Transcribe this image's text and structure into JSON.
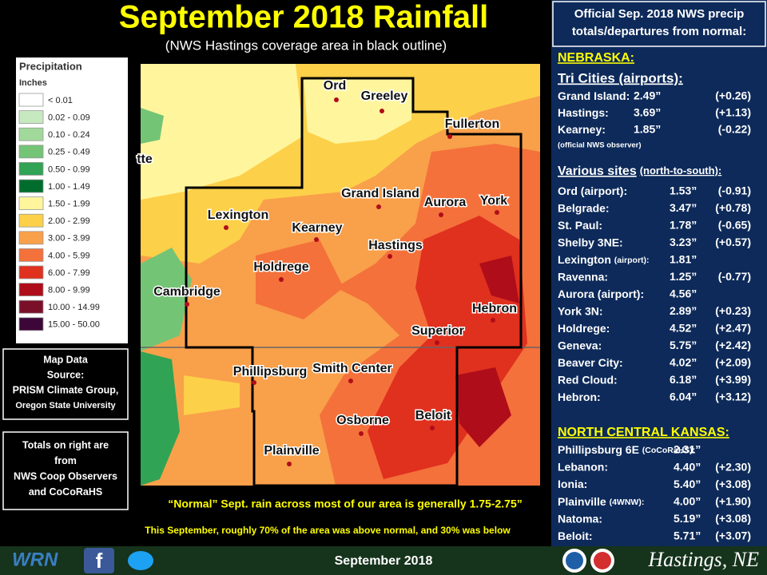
{
  "header": {
    "title": "September 2018 Rainfall",
    "subtitle": "(NWS Hastings coverage area in black outline)"
  },
  "legend": {
    "title": "Precipitation",
    "unit": "Inches",
    "items": [
      {
        "label": "< 0.01",
        "color": "#ffffff"
      },
      {
        "label": "0.02 - 0.09",
        "color": "#c7e9c0"
      },
      {
        "label": "0.10 - 0.24",
        "color": "#a1d99b"
      },
      {
        "label": "0.25 - 0.49",
        "color": "#74c476"
      },
      {
        "label": "0.50 - 0.99",
        "color": "#31a354"
      },
      {
        "label": "1.00 - 1.49",
        "color": "#006d2c"
      },
      {
        "label": "1.50 - 1.99",
        "color": "#fff59d"
      },
      {
        "label": "2.00 - 2.99",
        "color": "#fdd049"
      },
      {
        "label": "3.00 - 3.99",
        "color": "#f9a04a"
      },
      {
        "label": "4.00 - 5.99",
        "color": "#f4713b"
      },
      {
        "label": "6.00 - 7.99",
        "color": "#e0301e"
      },
      {
        "label": "8.00 - 9.99",
        "color": "#b00d1a"
      },
      {
        "label": "10.00 - 14.99",
        "color": "#7a0f2a"
      },
      {
        "label": "15.00 - 50.00",
        "color": "#3d0638"
      }
    ]
  },
  "map": {
    "places": [
      "Ord",
      "Greeley",
      "Fullerton",
      "tte",
      "Grand Island",
      "Aurora",
      "York",
      "Lexington",
      "Kearney",
      "Hastings",
      "Holdrege",
      "Cambridge",
      "Hebron",
      "Superior",
      "Phillipsburg",
      "Smith Center",
      "Osborne",
      "Beloit",
      "Plainville"
    ]
  },
  "source_box": {
    "lines": [
      "Map Data",
      "Source:",
      "PRISM Climate Group,",
      "Oregon State University"
    ]
  },
  "totals_box": {
    "lines": [
      "Totals on right are",
      "from",
      "NWS Coop Observers",
      "and CoCoRaHS"
    ]
  },
  "notes": {
    "normal": "“Normal” Sept.  rain across most of our area is generally 1.75-2.75”",
    "summary": "This September, roughly 70% of the area was above normal, and 30% was below"
  },
  "panel": {
    "header": [
      "Official Sep. 2018 NWS precip",
      "totals/departures from normal:"
    ],
    "nebraska": {
      "heading": "NEBRASKA:",
      "subheading": "Tri Cities (airports):",
      "tri_cities": [
        {
          "site": "Grand Island:",
          "total": "2.49”",
          "departure": "(+0.26)"
        },
        {
          "site": "Hastings:",
          "total": "3.69”",
          "departure": "(+1.13)"
        },
        {
          "site": "Kearney:",
          "total": "1.85”",
          "departure": "(-0.22)"
        }
      ],
      "observer_note": "(official NWS observer)",
      "various_heading": "Various  sites",
      "various_note": "(north-to-south):",
      "various": [
        {
          "site": "Ord (airport):",
          "total": "1.53”",
          "departure": "(-0.91)"
        },
        {
          "site": "Belgrade:",
          "total": "3.47”",
          "departure": "(+0.78)"
        },
        {
          "site": "St. Paul:",
          "total": "1.78”",
          "departure": "(-0.65)"
        },
        {
          "site": "Shelby 3NE:",
          "total": "3.23”",
          "departure": "(+0.57)"
        },
        {
          "site": "Lexington ",
          "note": "(airport):",
          "total": "1.81”"
        },
        {
          "site": "Ravenna:",
          "total": "1.25”",
          "departure": "(-0.77)"
        },
        {
          "site": "Aurora (airport):",
          "total": "4.56”"
        },
        {
          "site": "York 3N:",
          "total": "2.89”",
          "departure": "(+0.23)"
        },
        {
          "site": "Holdrege:",
          "total": "4.52”",
          "departure": "(+2.47)"
        },
        {
          "site": "Geneva:",
          "total": "5.75”",
          "departure": "(+2.42)"
        },
        {
          "site": "Beaver City:",
          "total": "4.02”",
          "departure": "(+2.09)"
        },
        {
          "site": "Red Cloud:",
          "total": "6.18”",
          "departure": "(+3.99)"
        },
        {
          "site": "Hebron:",
          "total": "6.04”",
          "departure": "(+3.12)"
        }
      ]
    },
    "kansas": {
      "heading": "NORTH CENTRAL KANSAS:",
      "sites": [
        {
          "site": "Phillipsburg 6E ",
          "note": "(CoCoRaHS):",
          "total": "2.31”"
        },
        {
          "site": "Lebanon:",
          "total": "4.40”",
          "departure": "(+2.30)"
        },
        {
          "site": "Ionia:",
          "total": "5.40”",
          "departure": "(+3.08)"
        },
        {
          "site": "Plainville ",
          "note": "(4WNW):",
          "total": "4.00”",
          "departure": "(+1.90)"
        },
        {
          "site": "Natoma:",
          "total": "5.19”",
          "departure": "(+3.08)"
        },
        {
          "site": "Beloit:",
          "total": "5.71”",
          "departure": "(+3.07)"
        }
      ]
    }
  },
  "footer": {
    "date": "September 2018",
    "office": "Hastings, NE"
  }
}
